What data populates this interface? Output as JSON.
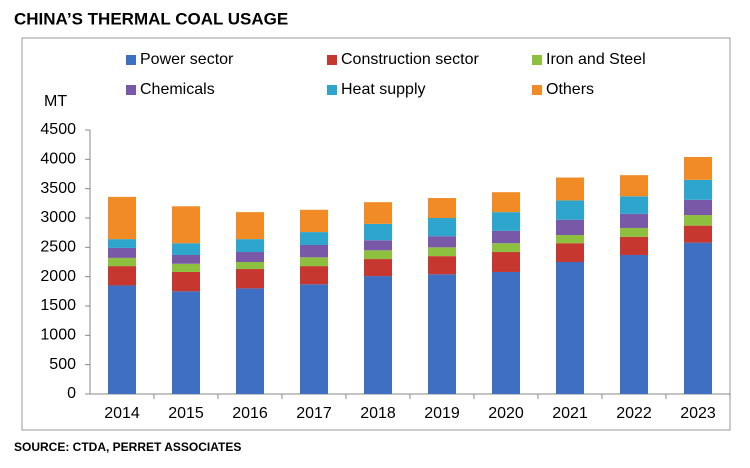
{
  "chart_data": {
    "type": "stacked_bar",
    "title": "CHINA’S THERMAL COAL USAGE",
    "y_label": "MT",
    "source": "SOURCE: CTDA, PERRET ASSOCIATES",
    "categories": [
      "2014",
      "2015",
      "2016",
      "2017",
      "2018",
      "2019",
      "2020",
      "2021",
      "2022",
      "2023"
    ],
    "series": [
      {
        "name": "Power sector",
        "color": "#3e6fc2",
        "values": [
          1850,
          1750,
          1800,
          1870,
          2010,
          2040,
          2080,
          2250,
          2370,
          2580
        ]
      },
      {
        "name": "Construction sector",
        "color": "#c6372f",
        "values": [
          330,
          330,
          330,
          310,
          290,
          310,
          340,
          320,
          310,
          290
        ]
      },
      {
        "name": "Iron and Steel",
        "color": "#8dc03f",
        "values": [
          140,
          140,
          120,
          150,
          150,
          150,
          150,
          140,
          150,
          180
        ]
      },
      {
        "name": "Chemicals",
        "color": "#7a58a8",
        "values": [
          170,
          150,
          170,
          210,
          170,
          190,
          210,
          260,
          240,
          260
        ]
      },
      {
        "name": "Heat supply",
        "color": "#2ea5cc",
        "values": [
          150,
          200,
          220,
          220,
          280,
          310,
          320,
          330,
          300,
          340
        ]
      },
      {
        "name": "Others",
        "color": "#f18b25",
        "values": [
          720,
          630,
          460,
          380,
          370,
          340,
          340,
          390,
          360,
          390
        ]
      }
    ],
    "ylim": [
      0,
      4500
    ],
    "yticks": [
      0,
      500,
      1000,
      1500,
      2000,
      2500,
      3000,
      3500,
      4000,
      4500
    ],
    "grid": false
  }
}
